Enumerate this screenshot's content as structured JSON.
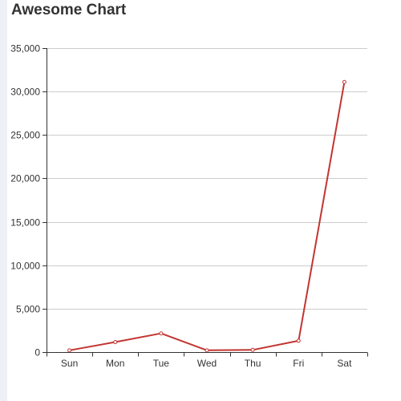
{
  "chart_data": {
    "type": "line",
    "title": "Awesome Chart",
    "categories": [
      "Sun",
      "Mon",
      "Tue",
      "Wed",
      "Thu",
      "Fri",
      "Sat"
    ],
    "series": [
      {
        "values": [
          200,
          1150,
          2150,
          200,
          250,
          1300,
          31100
        ],
        "color": "#c23531"
      }
    ],
    "ylim": [
      0,
      35000
    ],
    "yticks": [
      0,
      5000,
      10000,
      15000,
      20000,
      25000,
      30000,
      35000
    ],
    "ytick_labels": [
      "0",
      "5,000",
      "10,000",
      "15,000",
      "20,000",
      "25,000",
      "30,000",
      "35,000"
    ],
    "grid": true,
    "legend": "none",
    "xlabel": "",
    "ylabel": ""
  }
}
